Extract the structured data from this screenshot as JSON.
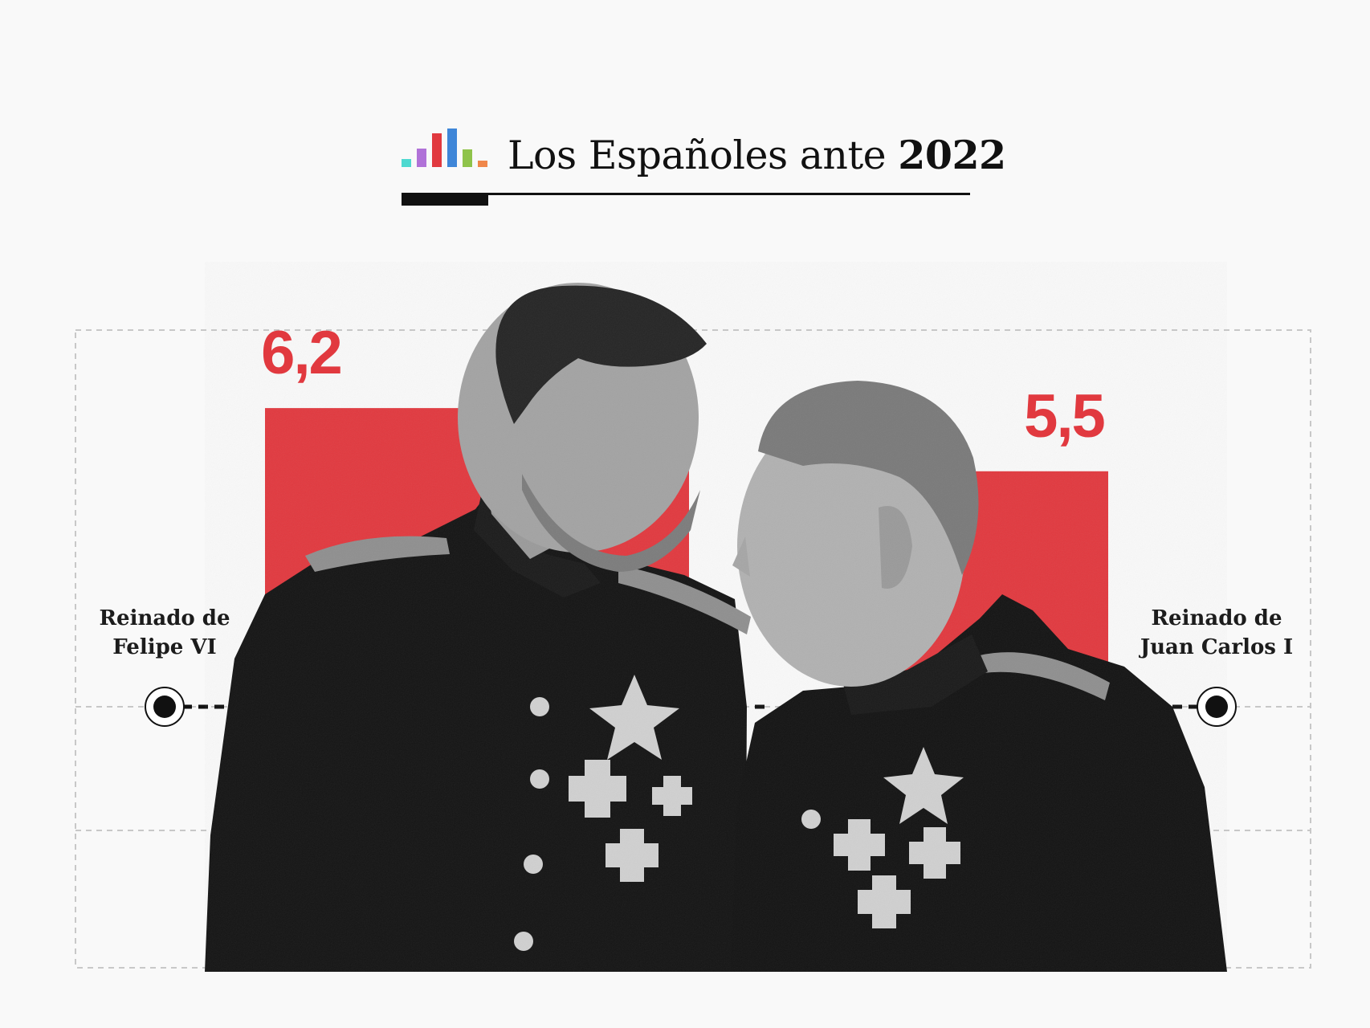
{
  "header": {
    "title_prefix": "Los Españoles ante",
    "title_year": "2022",
    "logo_colors": [
      "#4ed9d0",
      "#b072d8",
      "#e1393f",
      "#3f86d8",
      "#8fc34a",
      "#f0874a"
    ]
  },
  "colors": {
    "bar": "#e1393f",
    "accent": "#e1393f",
    "text": "#1c1c1c",
    "grid": "#c8c8c8"
  },
  "chart_data": {
    "type": "bar",
    "categories": [
      "Reinado de\nFelipe VI",
      "Reinado de\nJuan Carlos I"
    ],
    "values": [
      6.2,
      5.5
    ],
    "value_labels": [
      "6,2",
      "5,5"
    ],
    "title": "Los Españoles ante 2022",
    "grid": true
  },
  "photo": {
    "subject": "two-men-in-military-dress-uniform-photo"
  }
}
